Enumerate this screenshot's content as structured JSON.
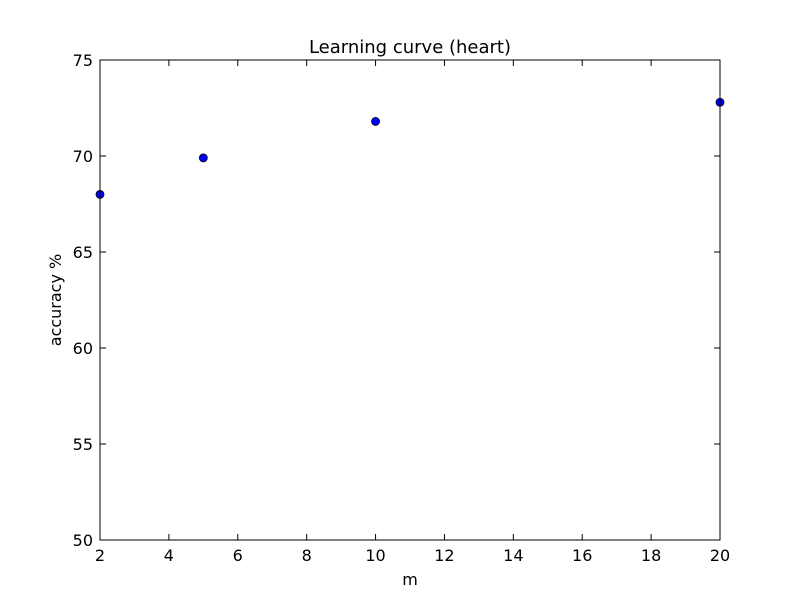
{
  "chart_data": {
    "type": "scatter",
    "title": "Learning curve (heart)",
    "xlabel": "m",
    "ylabel": "accuracy %",
    "xlim": [
      2,
      20
    ],
    "ylim": [
      50,
      75
    ],
    "xticks": [
      2,
      4,
      6,
      8,
      10,
      12,
      14,
      16,
      18,
      20
    ],
    "yticks": [
      50,
      55,
      60,
      65,
      70,
      75
    ],
    "grid": false,
    "legend": null,
    "series": [
      {
        "color": "#0000ff",
        "marker": "circle",
        "points": [
          {
            "x": 2,
            "y": 68.0
          },
          {
            "x": 5,
            "y": 69.9
          },
          {
            "x": 10,
            "y": 71.8
          },
          {
            "x": 20,
            "y": 72.8
          }
        ]
      }
    ]
  }
}
